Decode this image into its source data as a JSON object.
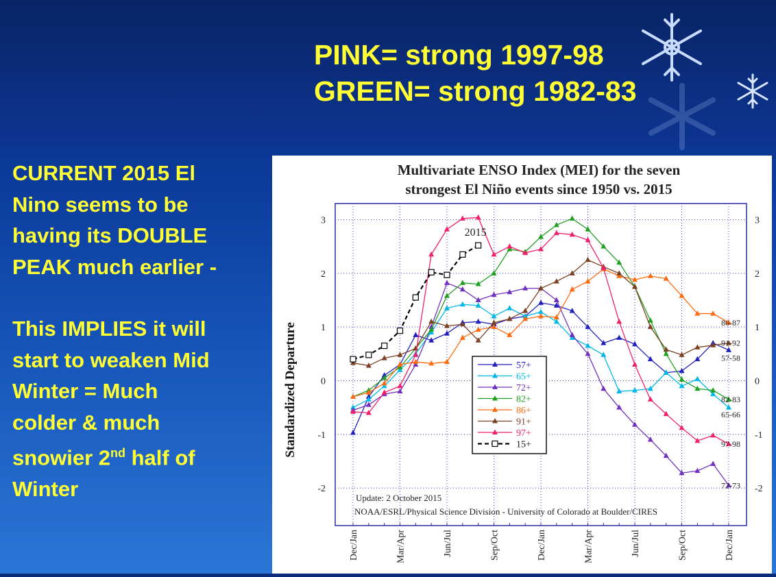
{
  "headline": {
    "line1": "PINK= strong 1997-98",
    "line2": "GREEN= strong 1982-83"
  },
  "side_text": {
    "p1_line1": "CURRENT  2015  El",
    "p1_line2": "Nino  seems to be",
    "p1_line3": "having its DOUBLE",
    "p1_line4": "PEAK  much earlier -",
    "p2_line1": "This  IMPLIES  it will",
    "p2_line2": "start to weaken Mid",
    "p2_line3": "Winter = Much",
    "p2_line4": "colder  & much",
    "p2_line5_pre": "snowier  2",
    "p2_line5_sup": "nd",
    "p2_line5_post": " half of",
    "p2_line6": "Winter"
  },
  "chart_data": {
    "type": "line",
    "title_line1": "Multivariate ENSO Index (MEI) for the seven",
    "title_line2": "strongest El Niño events since 1950 vs. 2015",
    "ylabel": "Standardized Departure",
    "ylim": [
      -2.7,
      3.3
    ],
    "yticks": [
      "3",
      "2",
      "1",
      "0",
      "-1",
      "-2"
    ],
    "ytick_values": [
      3,
      2,
      1,
      0,
      -1,
      -2
    ],
    "x_count": 25,
    "x_tick_labels": [
      "Dec/Jan",
      "Mar/Apr",
      "Jun/Jul",
      "Sep/Oct",
      "Dec/Jan",
      "Mar/Apr",
      "Jun/Jul",
      "Sep/Oct",
      "Dec/Jan"
    ],
    "x_tick_index": [
      0,
      3,
      6,
      9,
      12,
      15,
      18,
      21,
      24
    ],
    "update_text": "Update: 2 October 2015",
    "credit_text": "NOAA/ESRL/Physical Science Division - University of Colorado at Boulder/CIRES",
    "annotation_2015": "2015",
    "grid": true,
    "legend_position": "center-left",
    "series": [
      {
        "name": "57+",
        "color": "#2020c0",
        "marker": "triangle",
        "end_label": "57-58",
        "values": [
          -0.97,
          -0.3,
          0.1,
          0.3,
          0.85,
          0.75,
          0.88,
          1.08,
          1.1,
          1.05,
          1.15,
          1.2,
          1.45,
          1.4,
          1.3,
          1.0,
          0.7,
          0.8,
          0.68,
          0.4,
          0.15,
          0.18,
          0.4,
          0.7,
          0.57
        ]
      },
      {
        "name": "65+",
        "color": "#00b8e8",
        "marker": "triangle",
        "end_label": "65-66",
        "values": [
          -0.5,
          -0.35,
          -0.1,
          0.2,
          0.5,
          0.9,
          1.35,
          1.42,
          1.4,
          1.2,
          1.35,
          1.2,
          1.28,
          1.1,
          0.8,
          0.65,
          0.48,
          -0.2,
          -0.18,
          -0.15,
          0.15,
          -0.1,
          0.03,
          -0.25,
          -0.5
        ]
      },
      {
        "name": "72+",
        "color": "#7030c0",
        "marker": "triangle",
        "end_label": "72-73",
        "values": [
          -0.55,
          -0.45,
          -0.25,
          -0.2,
          0.3,
          1.0,
          1.82,
          1.7,
          1.5,
          1.6,
          1.65,
          1.72,
          1.72,
          1.5,
          0.85,
          0.5,
          -0.15,
          -0.5,
          -0.82,
          -1.1,
          -1.4,
          -1.72,
          -1.68,
          -1.55,
          -1.95
        ]
      },
      {
        "name": "82+",
        "color": "#20a020",
        "marker": "triangle",
        "end_label": "82-83",
        "values": [
          -0.3,
          -0.18,
          0.05,
          0.25,
          0.6,
          0.95,
          1.58,
          1.82,
          1.8,
          2.0,
          2.45,
          2.4,
          2.68,
          2.9,
          3.02,
          2.82,
          2.5,
          2.2,
          1.75,
          1.12,
          0.5,
          0.02,
          -0.15,
          -0.18,
          -0.35
        ]
      },
      {
        "name": "86+",
        "color": "#ff6a10",
        "marker": "triangle",
        "end_label": "86-87",
        "values": [
          -0.3,
          -0.22,
          -0.05,
          0.3,
          0.35,
          0.32,
          0.35,
          0.8,
          0.95,
          1.0,
          0.85,
          1.15,
          1.2,
          1.18,
          1.7,
          1.85,
          2.08,
          1.95,
          1.88,
          1.95,
          1.9,
          1.58,
          1.25,
          1.25,
          1.08
        ]
      },
      {
        "name": "91+",
        "color": "#7a4020",
        "marker": "triangle",
        "end_label": "91-92",
        "values": [
          0.33,
          0.28,
          0.42,
          0.48,
          0.6,
          1.1,
          1.02,
          1.05,
          0.75,
          1.08,
          1.15,
          1.3,
          1.72,
          1.85,
          2.0,
          2.25,
          2.12,
          2.0,
          1.75,
          1.0,
          0.58,
          0.48,
          0.62,
          0.66,
          0.7
        ]
      },
      {
        "name": "97+",
        "color": "#f0206a",
        "marker": "triangle",
        "end_label": "97-98",
        "values": [
          -0.58,
          -0.6,
          -0.22,
          -0.1,
          0.48,
          2.35,
          2.82,
          3.02,
          3.04,
          2.35,
          2.5,
          2.38,
          2.45,
          2.75,
          2.72,
          2.62,
          2.1,
          1.1,
          0.3,
          -0.35,
          -0.62,
          -0.88,
          -1.12,
          -1.02,
          -1.18
        ]
      },
      {
        "name": "15+",
        "color": "#000000",
        "marker": "square",
        "dashed": true,
        "end_label": "",
        "values": [
          0.4,
          0.48,
          0.65,
          0.93,
          1.55,
          2.02,
          1.97,
          2.35,
          2.52
        ]
      }
    ],
    "right_labels_order": [
      "86-87",
      "91-92",
      "57-58",
      "82-83",
      "65-66",
      "97-98",
      "72-73"
    ]
  }
}
